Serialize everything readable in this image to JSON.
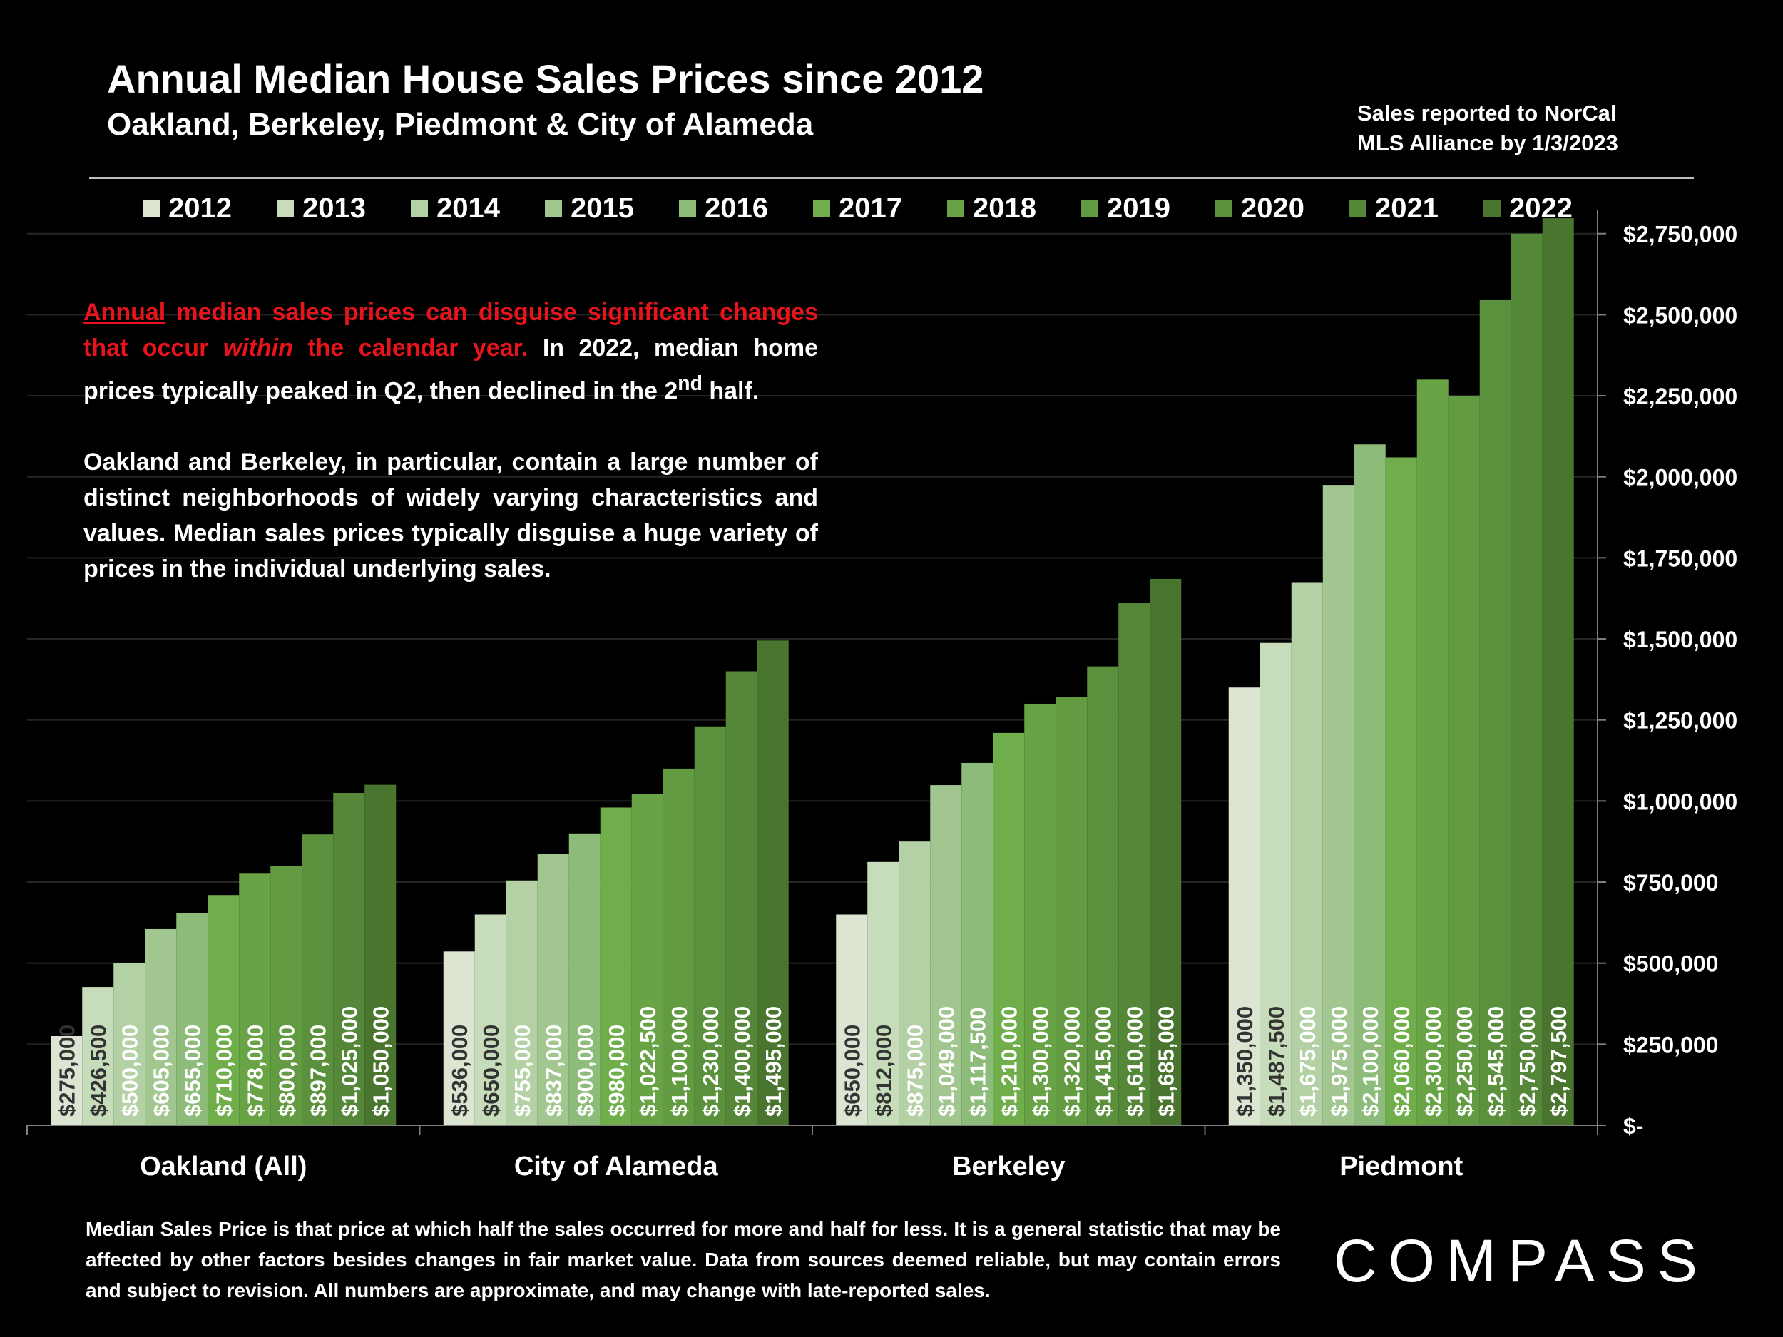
{
  "header": {
    "title": "Annual Median House Sales Prices since 2012",
    "subtitle": "Oakland, Berkeley, Piedmont & City of Alameda",
    "source_line1": "Sales reported to NorCal",
    "source_line2": "MLS Alliance by 1/3/2023"
  },
  "note": {
    "p1_a": "Annual",
    "p1_b": " median sales prices can disguise significant changes that occur ",
    "p1_c": "within",
    "p1_d": " the calendar year.",
    "p1_e": " In 2022, median home prices typically peaked in Q2, then declined in the 2",
    "p1_sup": "nd",
    "p1_f": " half.",
    "p2": "Oakland and Berkeley, in particular, contain a large number of distinct neighborhoods of widely varying characteristics and values. Median sales prices typically disguise a huge variety of prices in the individual underlying sales."
  },
  "footer": {
    "text": "Median Sales Price is that price at which half the sales occurred for more and half for less. It is a general statistic that may be affected by other factors besides changes in fair market value. Data from sources deemed reliable, but may contain errors and subject to revision.  All numbers are approximate, and may change with late-reported sales."
  },
  "logo": {
    "text": "COMPASS"
  },
  "colors": {
    "series": [
      "#dbe5d2",
      "#c7dcbb",
      "#b4d1a5",
      "#a1c68f",
      "#8dbb79",
      "#6fae4b",
      "#68a446",
      "#629b41",
      "#5b913d",
      "#558738",
      "#4a752f"
    ],
    "grid": "#262626",
    "axis": "#7f7f7f",
    "label_dark": "#333333"
  },
  "chart_data": {
    "type": "bar",
    "categories": [
      "Oakland (All)",
      "City of Alameda",
      "Berkeley",
      "Piedmont"
    ],
    "series": [
      {
        "name": "2012",
        "values": [
          275000,
          536000,
          650000,
          1350000
        ]
      },
      {
        "name": "2013",
        "values": [
          426500,
          650000,
          812000,
          1487500
        ]
      },
      {
        "name": "2014",
        "values": [
          500000,
          755000,
          875000,
          1675000
        ]
      },
      {
        "name": "2015",
        "values": [
          605000,
          837000,
          1049000,
          1975000
        ]
      },
      {
        "name": "2016",
        "values": [
          655000,
          900000,
          1117500,
          2100000
        ]
      },
      {
        "name": "2017",
        "values": [
          710000,
          980000,
          1210000,
          2060000
        ]
      },
      {
        "name": "2018",
        "values": [
          778000,
          1022500,
          1300000,
          2300000
        ]
      },
      {
        "name": "2019",
        "values": [
          800000,
          1100000,
          1320000,
          2250000
        ]
      },
      {
        "name": "2020",
        "values": [
          897000,
          1230000,
          1415000,
          2545000
        ]
      },
      {
        "name": "2021",
        "values": [
          1025000,
          1400000,
          1610000,
          2750000
        ]
      },
      {
        "name": "2022",
        "values": [
          1050000,
          1495000,
          1685000,
          2797500
        ]
      }
    ],
    "ylim": [
      0,
      2800000
    ],
    "yticks": [
      0,
      250000,
      500000,
      750000,
      1000000,
      1250000,
      1500000,
      1750000,
      2000000,
      2250000,
      2500000,
      2750000
    ],
    "ytick_labels": [
      "$-",
      "$250,000",
      "$500,000",
      "$750,000",
      "$1,000,000",
      "$1,250,000",
      "$1,500,000",
      "$1,750,000",
      "$2,000,000",
      "$2,250,000",
      "$2,500,000",
      "$2,750,000"
    ],
    "data_labels": [
      [
        "$275,000",
        "$426,500",
        "$500,000",
        "$605,000",
        "$655,000",
        "$710,000",
        "$778,000",
        "$800,000",
        "$897,000",
        "$1,025,000",
        "$1,050,000"
      ],
      [
        "$536,000",
        "$650,000",
        "$755,000",
        "$837,000",
        "$900,000",
        "$980,000",
        "$1,022,500",
        "$1,100,000",
        "$1,230,000",
        "$1,400,000",
        "$1,495,000"
      ],
      [
        "$650,000",
        "$812,000",
        "$875,000",
        "$1,049,000",
        "$1,117,500",
        "$1,210,000",
        "$1,300,000",
        "$1,320,000",
        "$1,415,000",
        "$1,610,000",
        "$1,685,000"
      ],
      [
        "$1,350,000",
        "$1,487,500",
        "$1,675,000",
        "$1,975,000",
        "$2,100,000",
        "$2,060,000",
        "$2,300,000",
        "$2,250,000",
        "$2,545,000",
        "$2,750,000",
        "$2,797,500"
      ]
    ],
    "legend_position": "top",
    "grid": true,
    "yaxis_side": "right"
  }
}
